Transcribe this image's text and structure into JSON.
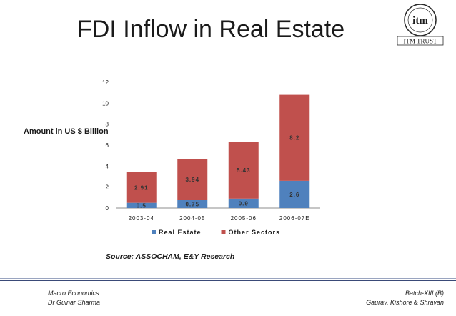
{
  "slide": {
    "title": "FDI Inflow in Real Estate",
    "source": "Source: ASSOCHAM, E&Y Research",
    "footer_left": [
      "Macro Economics",
      "Dr  Gulnar Sharma"
    ],
    "footer_right": [
      "Batch-XIII (B)",
      "Gaurav, Kishore & Shravan"
    ],
    "logo_text": "ITM TRUST",
    "logo_mark": "itm"
  },
  "chart_data": {
    "type": "bar",
    "stacked": true,
    "categories": [
      "2003-04",
      "2004-05",
      "2005-06",
      "2006-07E"
    ],
    "series": [
      {
        "name": "Real Estate",
        "values": [
          0.5,
          0.75,
          0.9,
          2.6
        ],
        "color": "#4f81bd",
        "labels": [
          "0.5",
          "0.75",
          "0.9",
          "2.6"
        ]
      },
      {
        "name": "Other Sectors",
        "values": [
          2.91,
          3.94,
          5.43,
          8.2
        ],
        "color": "#c0504d",
        "labels": [
          "2.91",
          "3.94",
          "5.43",
          "8.2"
        ]
      }
    ],
    "ylabel": "Amount in US $ Billion",
    "xlabel": "",
    "ylim": [
      0,
      12
    ],
    "yticks": [
      0,
      2,
      4,
      6,
      8,
      10,
      12
    ],
    "legend_position": "bottom",
    "grid": false
  }
}
